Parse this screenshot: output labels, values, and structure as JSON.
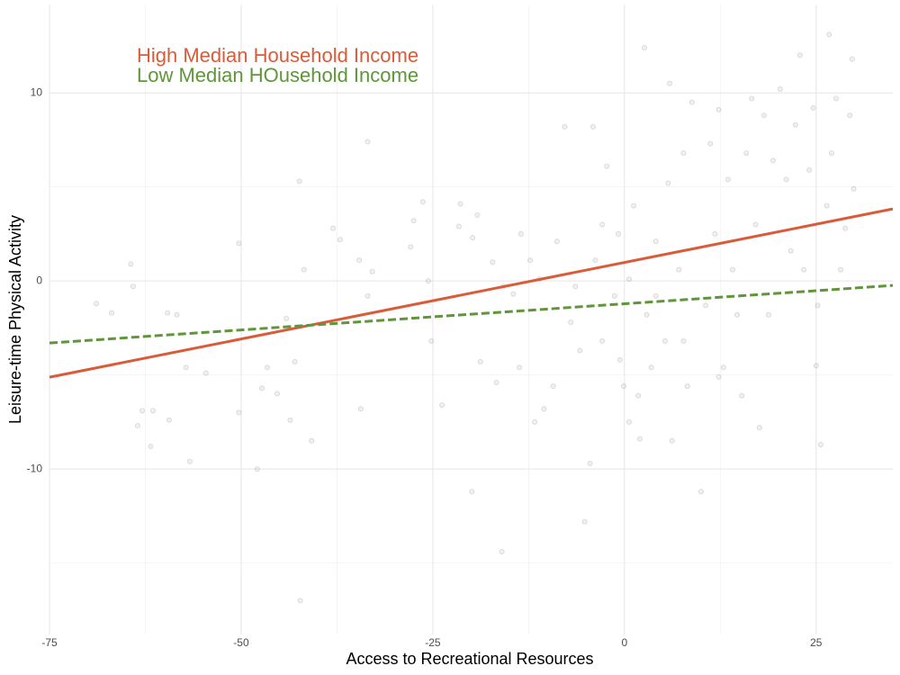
{
  "chart_data": {
    "type": "scatter",
    "x_label": "Access to Recreational Resources",
    "y_label": "Leisure-time Physical Activity",
    "xlim": [
      -75,
      35
    ],
    "ylim": [
      -18.8,
      14.7
    ],
    "xticks": [
      -75,
      -50,
      -25,
      0,
      25
    ],
    "yticks": [
      -10,
      0,
      10
    ],
    "grid": true,
    "point_color": "#999999",
    "points": {
      "x": [
        -68.9,
        -66.9,
        -64.4,
        -64.1,
        -63.5,
        -62.9,
        -61.8,
        -61.5,
        -59.6,
        -59.4,
        -58.4,
        -57.2,
        -56.7,
        -54.6,
        -50.3,
        -50.3,
        -47.9,
        -47.3,
        -46.6,
        -45.3,
        -44.1,
        -43.6,
        -43.0,
        -42.4,
        -42.3,
        -41.8,
        -40.8,
        -38.0,
        -37.1,
        -34.6,
        -33.5,
        -34.4,
        -33.5,
        -32.9,
        -27.9,
        -27.5,
        -26.3,
        -25.6,
        -25.2,
        -23.8,
        -21.4,
        -21.6,
        -19.8,
        -19.2,
        -19.9,
        -18.8,
        -17.2,
        -16.7,
        -16.0,
        -15.8,
        -14.5,
        -13.7,
        -13.5,
        -12.3,
        -11.7,
        -11.1,
        -10.5,
        -9.3,
        -8.8,
        -7.8,
        -7.0,
        -5.8,
        -5.2,
        -4.5,
        -4.1,
        -3.8,
        -2.9,
        -2.3,
        -1.3,
        -0.8,
        -0.1,
        0.6,
        1.2,
        2.0,
        2.6,
        2.9,
        3.5,
        4.1,
        5.3,
        5.7,
        5.9,
        6.2,
        7.1,
        7.7,
        8.2,
        8.8,
        10.0,
        10.6,
        11.2,
        11.8,
        12.3,
        12.9,
        13.5,
        14.1,
        14.7,
        15.3,
        15.9,
        16.6,
        17.1,
        17.6,
        18.2,
        18.8,
        19.4,
        20.3,
        21.1,
        21.7,
        22.3,
        22.9,
        23.4,
        24.1,
        24.6,
        25.2,
        25.0,
        25.6,
        26.4,
        27.0,
        26.7,
        27.6,
        28.2,
        28.8,
        29.4,
        29.7,
        29.9,
        0.6,
        -0.6,
        7.7,
        12.3,
        -6.4,
        -2.9,
        4.1,
        1.8
      ],
      "y": [
        -1.2,
        -1.7,
        0.9,
        -0.3,
        -7.7,
        -6.9,
        -8.8,
        -6.9,
        -1.7,
        -7.4,
        -1.8,
        -4.6,
        -9.6,
        -4.9,
        2.0,
        -7.0,
        -10.0,
        -5.7,
        -4.6,
        -6.0,
        -2.0,
        -7.4,
        -4.3,
        5.3,
        -17.0,
        0.6,
        -8.5,
        2.8,
        2.2,
        1.1,
        7.4,
        -6.8,
        -0.8,
        0.5,
        1.8,
        3.2,
        4.2,
        0.0,
        -3.2,
        -6.6,
        4.1,
        2.9,
        2.3,
        3.5,
        -11.2,
        -4.3,
        1.0,
        -5.4,
        -14.4,
        -0.3,
        -0.7,
        -4.6,
        2.5,
        1.1,
        -7.5,
        0.1,
        -6.8,
        -5.6,
        2.1,
        8.2,
        -2.2,
        -3.7,
        -12.8,
        -9.7,
        8.2,
        1.1,
        -3.2,
        6.1,
        -0.8,
        2.5,
        -5.6,
        0.1,
        4.0,
        -8.4,
        12.4,
        -1.8,
        -4.6,
        2.1,
        -3.2,
        5.2,
        10.5,
        -8.5,
        0.6,
        6.8,
        -5.6,
        9.5,
        -11.2,
        -1.3,
        7.3,
        2.5,
        9.1,
        -4.6,
        5.4,
        0.6,
        -1.8,
        -6.1,
        6.8,
        9.7,
        3.0,
        -7.8,
        8.8,
        -1.8,
        6.4,
        10.2,
        5.4,
        1.6,
        8.3,
        12.0,
        0.6,
        5.9,
        9.2,
        -1.3,
        -4.5,
        -8.7,
        4.0,
        6.8,
        13.1,
        9.7,
        0.6,
        2.8,
        8.8,
        11.8,
        4.9,
        -7.5,
        -4.2,
        -3.2,
        -5.1,
        -0.3,
        3.0,
        -0.8,
        -6.1
      ]
    },
    "lines": [
      {
        "name": "High Median Household Income",
        "color": "#d95c39",
        "dashed": false,
        "x": [
          -75,
          35
        ],
        "values": [
          -5.12,
          3.83
        ]
      },
      {
        "name": "Low Median HOusehold Income",
        "color": "#5f963a",
        "dashed": true,
        "x": [
          -75,
          35
        ],
        "values": [
          -3.3,
          -0.24
        ]
      }
    ]
  }
}
